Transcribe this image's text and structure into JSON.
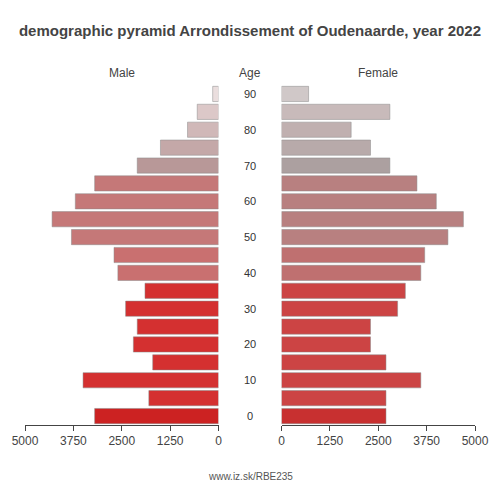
{
  "chart_data": {
    "type": "bar",
    "orientation": "horizontal",
    "title": "demographic pyramid Arrondissement of Oudenaarde, year 2022",
    "ylabel": "Age",
    "categories": [
      0,
      null,
      10,
      null,
      20,
      null,
      30,
      null,
      40,
      null,
      50,
      null,
      60,
      null,
      70,
      null,
      80,
      null,
      90
    ],
    "series": [
      {
        "name": "Male",
        "values": [
          3200,
          1800,
          3500,
          1700,
          2200,
          2100,
          2400,
          1900,
          2600,
          2700,
          3800,
          4300,
          3700,
          3200,
          2100,
          1500,
          800,
          550,
          150
        ],
        "colors": [
          "#cc2222",
          "#d43030",
          "#d43030",
          "#d43030",
          "#d43030",
          "#d43030",
          "#d43030",
          "#d43030",
          "#c97070",
          "#c97070",
          "#c57878",
          "#c57878",
          "#c57878",
          "#c57878",
          "#b89898",
          "#c4a8a8",
          "#d0b8b8",
          "#dcc8c8",
          "#eadede"
        ]
      },
      {
        "name": "Female",
        "values": [
          2700,
          2700,
          3600,
          2700,
          2300,
          2300,
          3000,
          3200,
          3600,
          3700,
          4300,
          4700,
          4000,
          3500,
          2800,
          2300,
          1800,
          2800,
          700
        ],
        "colors": [
          "#c83030",
          "#cc4444",
          "#cc4444",
          "#cc4444",
          "#cc4444",
          "#cc4444",
          "#cc4444",
          "#cc4444",
          "#bf7070",
          "#bf7070",
          "#b88080",
          "#b88080",
          "#b88080",
          "#b88080",
          "#aca0a0",
          "#b8aaaa",
          "#c0b0b0",
          "#c8baba",
          "#d0c8c8"
        ]
      }
    ],
    "xlim": [
      0,
      5000
    ],
    "xticks": [
      0,
      1250,
      2500,
      3750,
      5000
    ],
    "grid": false,
    "annotations": [
      "www.iz.sk/RBE235"
    ]
  }
}
